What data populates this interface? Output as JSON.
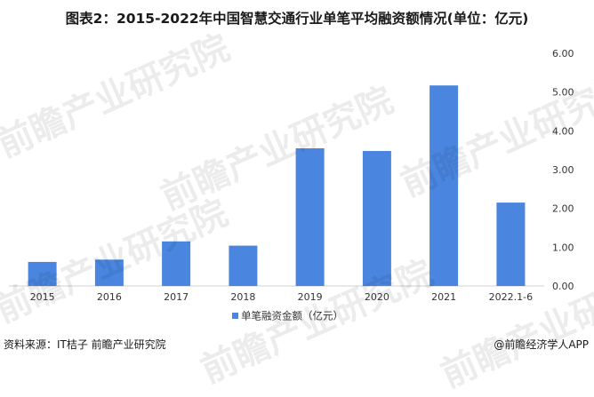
{
  "title": "图表2：2015-2022年中国智慧交通行业单笔平均融资额情况(单位：亿元)",
  "footer": {
    "source": "资料来源：IT桔子 前瞻产业研究院",
    "brand": "@前瞻经济学人APP"
  },
  "watermark": {
    "text": "前瞻产业研究院"
  },
  "colors": {
    "bar": "#4a86e0",
    "axis": "#d0d0d0",
    "text": "#333333"
  },
  "chart_data": {
    "type": "bar",
    "title": "图表2：2015-2022年中国智慧交通行业单笔平均融资额情况(单位：亿元)",
    "categories": [
      "2015",
      "2016",
      "2017",
      "2018",
      "2019",
      "2020",
      "2021",
      "2022.1-6"
    ],
    "series": [
      {
        "name": "单笔融资金额（亿元）",
        "values": [
          0.62,
          0.68,
          1.15,
          1.04,
          3.55,
          3.48,
          5.17,
          2.15
        ]
      }
    ],
    "yaxis": {
      "position": "right",
      "ylim": [
        0,
        6
      ],
      "ticks": [
        "0.00",
        "1.00",
        "2.00",
        "3.00",
        "4.00",
        "5.00",
        "6.00"
      ]
    },
    "grid": false,
    "legend": "bottom-center"
  }
}
